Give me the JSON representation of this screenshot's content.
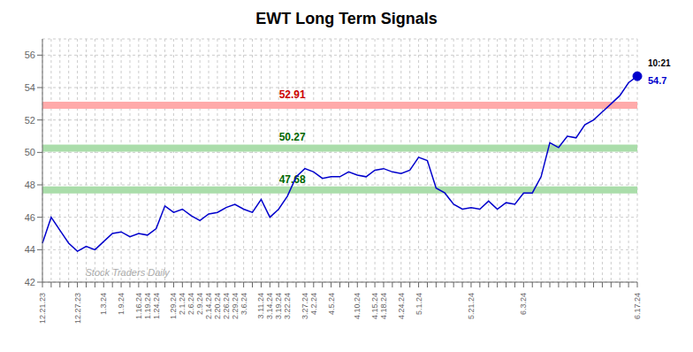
{
  "chart_data": {
    "type": "line",
    "title": "EWT Long Term Signals",
    "color": "#0000cc",
    "grid": true,
    "ylim": [
      42,
      57
    ],
    "yticks": [
      42,
      44,
      46,
      48,
      50,
      52,
      54,
      56
    ],
    "categories": [
      "12.21.23",
      null,
      null,
      null,
      "12.27.23",
      null,
      null,
      "1.3.24",
      null,
      "1.9.24",
      null,
      "1.16.24",
      "1.19.24",
      "1.24.24",
      null,
      "1.29.24",
      "2.1.24",
      "2.6.24",
      "2.9.24",
      "2.14.24",
      "2.20.24",
      "2.26.24",
      "2.29.24",
      "3.6.24",
      null,
      "3.11.24",
      "3.14.24",
      "3.19.24",
      "3.22.24",
      null,
      "3.27.24",
      "4.2.24",
      null,
      "4.5.24",
      null,
      null,
      "4.10.24",
      null,
      "4.15.24",
      "4.18.24",
      null,
      "4.24.24",
      null,
      "5.1.24",
      null,
      null,
      null,
      null,
      null,
      "5.21.24",
      null,
      null,
      null,
      null,
      null,
      "6.3.24",
      null,
      null,
      null,
      null,
      null,
      null,
      null,
      null,
      null,
      null,
      null,
      null,
      "6.17.24"
    ],
    "values": [
      44.4,
      46.0,
      45.2,
      44.4,
      43.9,
      44.2,
      44.0,
      44.5,
      45.0,
      45.1,
      44.8,
      45.0,
      44.9,
      45.3,
      46.7,
      46.3,
      46.5,
      46.1,
      45.8,
      46.2,
      46.3,
      46.6,
      46.8,
      46.5,
      46.3,
      47.1,
      46.0,
      46.5,
      47.3,
      48.5,
      49.0,
      48.8,
      48.4,
      48.5,
      48.5,
      48.8,
      48.6,
      48.5,
      48.9,
      49.0,
      48.8,
      48.7,
      48.9,
      49.7,
      49.5,
      47.8,
      47.5,
      46.8,
      46.5,
      46.6,
      46.5,
      47.0,
      46.5,
      46.9,
      46.8,
      47.5,
      47.5,
      48.5,
      50.6,
      50.3,
      51.0,
      50.9,
      51.7,
      52.0,
      52.5,
      53.0,
      53.5,
      54.3,
      54.7
    ],
    "hlines": [
      {
        "value": 52.91,
        "label": "52.91",
        "color": "#ffaaaa",
        "label_color": "#cc0000"
      },
      {
        "value": 50.27,
        "label": "50.27",
        "color": "#aaddaa",
        "label_color": "#006600"
      },
      {
        "value": 47.68,
        "label": "47.68",
        "color": "#aaddaa",
        "label_color": "#006600"
      }
    ],
    "dot": {
      "index": 68,
      "color": "#0000cc"
    },
    "annotations": [
      {
        "index": 68,
        "text": "10:21",
        "color": "#000000"
      },
      {
        "index": 68,
        "text": "54.7",
        "color": "#0000cc"
      }
    ],
    "watermark": {
      "index": 5,
      "text": "Stock Traders Daily",
      "color": "#aaaaaa"
    }
  }
}
